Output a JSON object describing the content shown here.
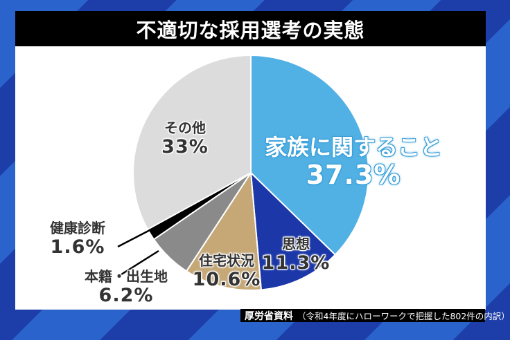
{
  "title": "不適切な採用選考の実態",
  "source": {
    "main": "厚労省資料",
    "note": "（令和4年度にハローワークで把握した802件の内訳）"
  },
  "chart_data": {
    "type": "pie",
    "title": "不適切な採用選考の実態",
    "start_angle_deg": 0,
    "direction": "clockwise",
    "slices": [
      {
        "label": "家族に関すること",
        "value": 37.3,
        "display": "37.3%",
        "color": "#52b1e4"
      },
      {
        "label": "思想",
        "value": 11.3,
        "display": "11.3%",
        "color": "#1c37a8"
      },
      {
        "label": "住宅状況",
        "value": 10.6,
        "display": "10.6%",
        "color": "#c6a877"
      },
      {
        "label": "本籍・出生地",
        "value": 6.2,
        "display": "6.2%",
        "color": "#8a8a8a"
      },
      {
        "label": "健康診断",
        "value": 1.6,
        "display": "1.6%",
        "color": "#000000"
      },
      {
        "label": "その他",
        "value": 33,
        "display": "33%",
        "color": "#dcdcdc"
      }
    ],
    "note": "厚労省資料（令和4年度にハローワークで把握した802件の内訳）"
  },
  "labels": {
    "family": {
      "name": "家族に関すること",
      "pct": "37.3%"
    },
    "thought": {
      "name": "思想",
      "pct": "11.3%"
    },
    "housing": {
      "name": "住宅状況",
      "pct": "10.6%"
    },
    "origin": {
      "name": "本籍・出生地",
      "pct": "6.2%"
    },
    "health": {
      "name": "健康診断",
      "pct": "1.6%"
    },
    "other": {
      "name": "その他",
      "pct": "33%"
    }
  }
}
